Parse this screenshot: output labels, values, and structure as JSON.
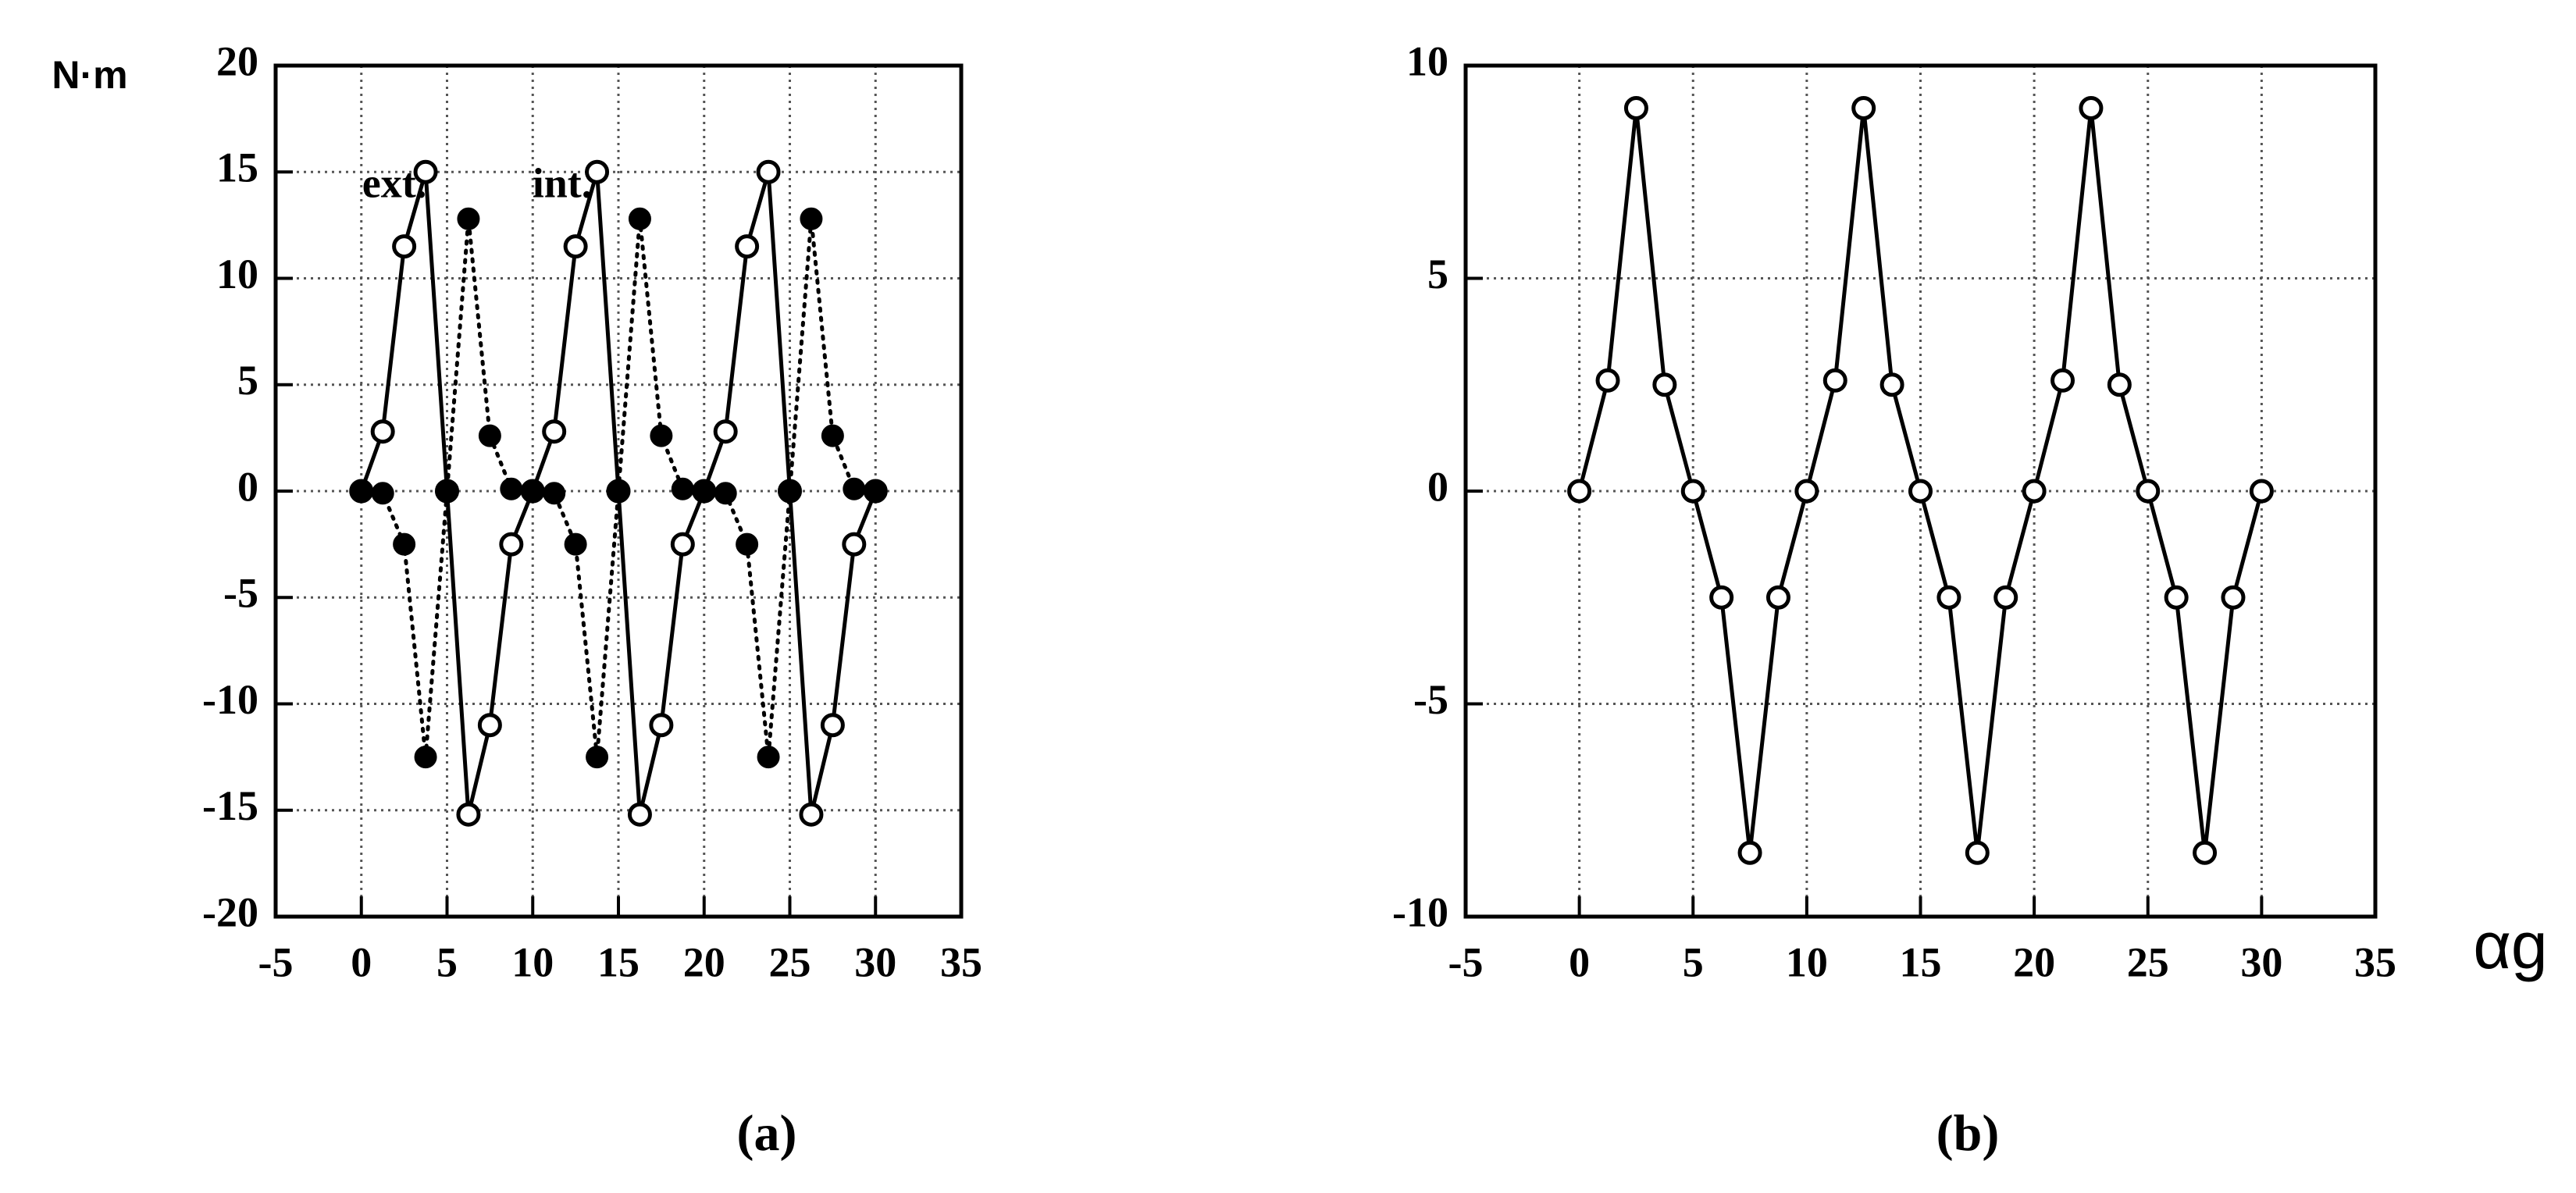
{
  "chart_data": [
    {
      "type": "line",
      "caption": "(a)",
      "ylabel": "N·m",
      "x": [
        0,
        1.25,
        2.5,
        3.75,
        5,
        6.25,
        7.5,
        8.75,
        10,
        11.25,
        12.5,
        13.75,
        15,
        16.25,
        17.5,
        18.75,
        20,
        21.25,
        22.5,
        23.75,
        25,
        26.25,
        27.5,
        28.75,
        30
      ],
      "series": [
        {
          "name": "ext.",
          "color": "#000000",
          "marker": "open",
          "line_style": "solid",
          "values": [
            0,
            2.8,
            11.5,
            15,
            0,
            -15.2,
            -11,
            -2.5,
            0,
            2.8,
            11.5,
            15,
            0,
            -15.2,
            -11,
            -2.5,
            0,
            2.8,
            11.5,
            15,
            0,
            -15.2,
            -11,
            -2.5,
            0
          ]
        },
        {
          "name": "int.",
          "color": "#000000",
          "marker": "filled",
          "line_style": "dotted",
          "values": [
            0,
            -0.1,
            -2.5,
            -12.5,
            0,
            12.8,
            2.6,
            0.1,
            0,
            -0.1,
            -2.5,
            -12.5,
            0,
            12.8,
            2.6,
            0.1,
            0,
            -0.1,
            -2.5,
            -12.5,
            0,
            12.8,
            2.6,
            0.1,
            0
          ]
        }
      ],
      "xlim": [
        -5,
        35
      ],
      "xticks": [
        -5,
        0,
        5,
        10,
        15,
        20,
        25,
        30,
        35
      ],
      "ylim": [
        -20,
        20
      ],
      "yticks": [
        -20,
        -15,
        -10,
        -5,
        0,
        5,
        10,
        15,
        20
      ],
      "grid": true
    },
    {
      "type": "line",
      "caption": "(b)",
      "xlabel": "αg",
      "x": [
        0,
        1.25,
        2.5,
        3.75,
        5,
        6.25,
        7.5,
        8.75,
        10,
        11.25,
        12.5,
        13.75,
        15,
        16.25,
        17.5,
        18.75,
        20,
        21.25,
        22.5,
        23.75,
        25,
        26.25,
        27.5,
        28.75,
        30
      ],
      "series": [
        {
          "color": "#000000",
          "marker": "open",
          "line_style": "solid",
          "values": [
            0,
            2.6,
            9,
            2.5,
            0,
            -2.5,
            -8.5,
            -2.5,
            0,
            2.6,
            9,
            2.5,
            0,
            -2.5,
            -8.5,
            -2.5,
            0,
            2.6,
            9,
            2.5,
            0,
            -2.5,
            -8.5,
            -2.5,
            0
          ]
        }
      ],
      "xlim": [
        -5,
        35
      ],
      "xticks": [
        -5,
        0,
        5,
        10,
        15,
        20,
        25,
        30,
        35
      ],
      "ylim": [
        -10,
        10
      ],
      "yticks": [
        -10,
        -5,
        0,
        5,
        10
      ],
      "grid": true
    }
  ]
}
